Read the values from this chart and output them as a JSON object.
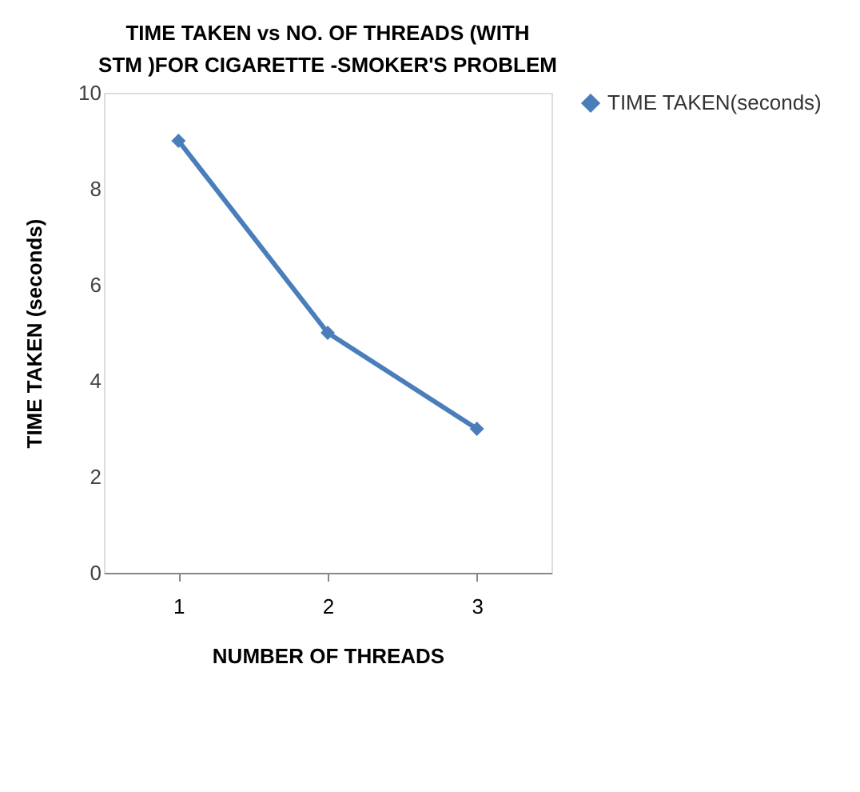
{
  "chart_data": {
    "type": "line",
    "title": "TIME TAKEN vs NO. OF THREADS (WITH  STM )FOR CIGARETTE -SMOKER'S PROBLEM",
    "xlabel": "NUMBER OF THREADS",
    "ylabel": "TIME TAKEN (seconds)",
    "categories": [
      "1",
      "2",
      "3"
    ],
    "series": [
      {
        "name": "TIME TAKEN(seconds)",
        "color": "#4a7ebb",
        "values": [
          9,
          5,
          3
        ]
      }
    ],
    "ylim": [
      0,
      10
    ],
    "yticks": [
      0,
      2,
      4,
      6,
      8,
      10
    ],
    "grid": false,
    "legend": "right",
    "marker": "diamond",
    "line_style": "solid"
  }
}
